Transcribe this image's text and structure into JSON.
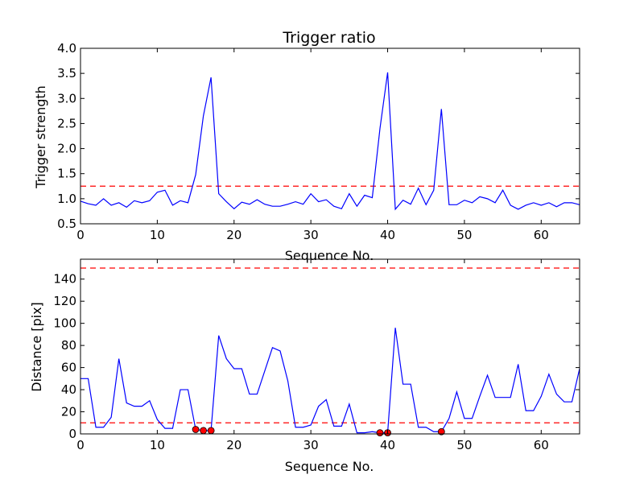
{
  "chart_data": [
    {
      "type": "line",
      "title": "Trigger ratio",
      "xlabel": "Sequence No.",
      "ylabel": "Trigger strength",
      "xlim": [
        0,
        65
      ],
      "ylim": [
        0.5,
        4.0
      ],
      "xticks": [
        "0",
        "10",
        "20",
        "30",
        "40",
        "50",
        "60"
      ],
      "yticks": [
        "0.5",
        "1.0",
        "1.5",
        "2.0",
        "2.5",
        "3.0",
        "3.5",
        "4.0"
      ],
      "grid": false,
      "line_color": "#0000ff",
      "threshold_color": "#ff0000",
      "thresholds": [
        1.25
      ],
      "x": [
        0,
        1,
        2,
        3,
        4,
        5,
        6,
        7,
        8,
        9,
        10,
        11,
        12,
        13,
        14,
        15,
        16,
        17,
        18,
        19,
        20,
        21,
        22,
        23,
        24,
        25,
        26,
        27,
        28,
        29,
        30,
        31,
        32,
        33,
        34,
        35,
        36,
        37,
        38,
        39,
        40,
        41,
        42,
        43,
        44,
        45,
        46,
        47,
        48,
        49,
        50,
        51,
        52,
        53,
        54,
        55,
        56,
        57,
        58,
        59,
        60,
        61,
        62,
        63,
        64,
        65
      ],
      "y": [
        0.95,
        0.9,
        0.87,
        1.0,
        0.87,
        0.92,
        0.83,
        0.96,
        0.92,
        0.96,
        1.13,
        1.17,
        0.87,
        0.96,
        0.92,
        1.48,
        2.65,
        3.42,
        1.1,
        0.94,
        0.8,
        0.93,
        0.89,
        0.98,
        0.89,
        0.85,
        0.85,
        0.89,
        0.94,
        0.89,
        1.1,
        0.94,
        0.98,
        0.85,
        0.8,
        1.1,
        0.85,
        1.07,
        1.02,
        2.4,
        3.52,
        0.79,
        0.97,
        0.89,
        1.21,
        0.88,
        1.17,
        2.79,
        0.88,
        0.88,
        0.97,
        0.92,
        1.04,
        1.0,
        0.92,
        1.17,
        0.87,
        0.79,
        0.87,
        0.92,
        0.87,
        0.92,
        0.84,
        0.92,
        0.92,
        0.88
      ]
    },
    {
      "type": "line",
      "title": "",
      "xlabel": "Sequence No.",
      "ylabel": "Distance [pix]",
      "xlim": [
        0,
        65
      ],
      "ylim": [
        0,
        158
      ],
      "xticks": [
        "0",
        "10",
        "20",
        "30",
        "40",
        "50",
        "60"
      ],
      "yticks": [
        "0",
        "20",
        "40",
        "60",
        "80",
        "100",
        "120",
        "140"
      ],
      "grid": false,
      "line_color": "#0000ff",
      "threshold_color": "#ff0000",
      "marker_color": "#ff0000",
      "thresholds": [
        150,
        10
      ],
      "x": [
        0,
        1,
        2,
        3,
        4,
        5,
        6,
        7,
        8,
        9,
        10,
        11,
        12,
        13,
        14,
        15,
        16,
        17,
        18,
        19,
        20,
        21,
        22,
        23,
        24,
        25,
        26,
        27,
        28,
        29,
        30,
        31,
        32,
        33,
        34,
        35,
        36,
        37,
        38,
        39,
        40,
        41,
        42,
        43,
        44,
        45,
        46,
        47,
        48,
        49,
        50,
        51,
        52,
        53,
        54,
        55,
        56,
        57,
        58,
        59,
        60,
        61,
        62,
        63,
        64,
        65
      ],
      "y": [
        50,
        50,
        6,
        6,
        15,
        68,
        28,
        25,
        25,
        30,
        13,
        5,
        5,
        40,
        40,
        4,
        3,
        3,
        89,
        68,
        59,
        59,
        36,
        36,
        57,
        78,
        75,
        48,
        6,
        6,
        8,
        25,
        31,
        7,
        7,
        27,
        1,
        1,
        2,
        1,
        1,
        96,
        45,
        45,
        6,
        6,
        2,
        2,
        14,
        38,
        14,
        14,
        34,
        53,
        33,
        33,
        33,
        63,
        21,
        21,
        34,
        54,
        36,
        29,
        29,
        59
      ],
      "markers": [
        {
          "x": 15,
          "y": 4
        },
        {
          "x": 16,
          "y": 3
        },
        {
          "x": 17,
          "y": 3
        },
        {
          "x": 39,
          "y": 1
        },
        {
          "x": 40,
          "y": 1
        },
        {
          "x": 47,
          "y": 2
        }
      ]
    }
  ]
}
